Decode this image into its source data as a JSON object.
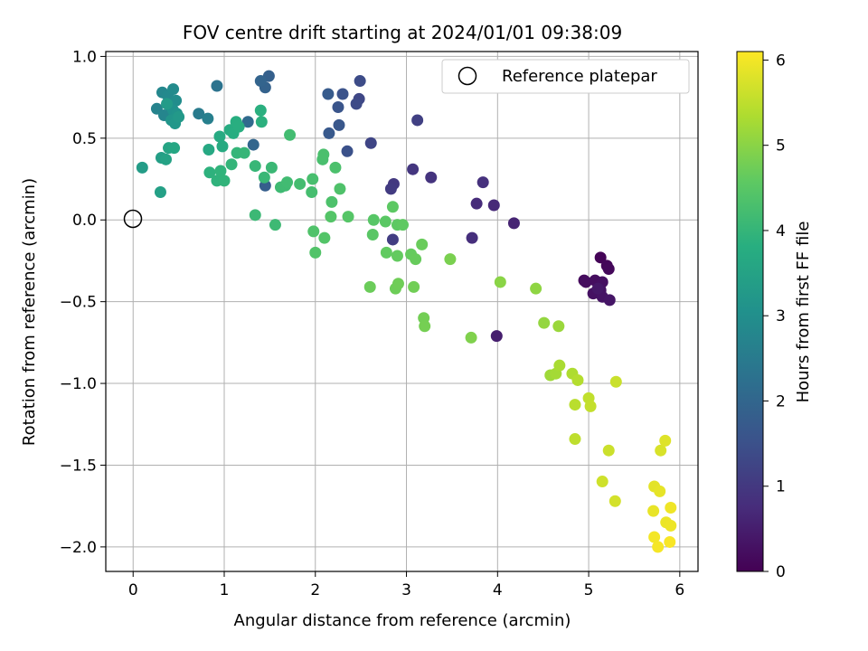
{
  "chart_data": {
    "type": "scatter",
    "title": "FOV centre drift starting at 2024/01/01 09:38:09",
    "xlabel": "Angular distance from reference (arcmin)",
    "ylabel": "Rotation from reference (arcmin)",
    "xlim": [
      -0.3,
      6.2
    ],
    "ylim": [
      -2.15,
      1.03
    ],
    "x_ticks": [
      0,
      1,
      2,
      3,
      4,
      5,
      6
    ],
    "y_ticks": [
      -2.0,
      -1.5,
      -1.0,
      -0.5,
      0.0,
      0.5,
      1.0
    ],
    "x_tick_labels": [
      "0",
      "1",
      "2",
      "3",
      "4",
      "5",
      "6"
    ],
    "y_tick_labels": [
      "−2.0",
      "−1.5",
      "−1.0",
      "−0.5",
      "0.0",
      "0.5",
      "1.0"
    ],
    "grid": true,
    "colormap": "viridis",
    "colorbar": {
      "label": "Hours from first FF file",
      "range": [
        0,
        6.1
      ],
      "ticks": [
        0,
        1,
        2,
        3,
        4,
        5,
        6
      ],
      "tick_labels": [
        "0",
        "1",
        "2",
        "3",
        "4",
        "5",
        "6"
      ]
    },
    "legend": {
      "placement": "top-right",
      "entries": [
        "Reference platepar"
      ]
    },
    "reference_point": {
      "x": 0.0,
      "y": 0.0
    },
    "points": [
      {
        "x": 5.13,
        "y": -0.23,
        "c": 0.05
      },
      {
        "x": 5.2,
        "y": -0.28,
        "c": 0.1
      },
      {
        "x": 5.22,
        "y": -0.3,
        "c": 0.12
      },
      {
        "x": 4.95,
        "y": -0.37,
        "c": 0.15
      },
      {
        "x": 4.97,
        "y": -0.38,
        "c": 0.2
      },
      {
        "x": 5.07,
        "y": -0.37,
        "c": 0.22
      },
      {
        "x": 5.15,
        "y": -0.38,
        "c": 0.25
      },
      {
        "x": 5.05,
        "y": -0.45,
        "c": 0.28
      },
      {
        "x": 5.13,
        "y": -0.43,
        "c": 0.3
      },
      {
        "x": 5.15,
        "y": -0.47,
        "c": 0.32
      },
      {
        "x": 5.23,
        "y": -0.49,
        "c": 0.35
      },
      {
        "x": 5.1,
        "y": -0.42,
        "c": 0.38
      },
      {
        "x": 3.99,
        "y": -0.71,
        "c": 0.5
      },
      {
        "x": 4.18,
        "y": -0.02,
        "c": 0.6
      },
      {
        "x": 3.96,
        "y": 0.09,
        "c": 0.7
      },
      {
        "x": 3.77,
        "y": 0.1,
        "c": 0.75
      },
      {
        "x": 3.72,
        "y": -0.11,
        "c": 0.8
      },
      {
        "x": 3.84,
        "y": 0.23,
        "c": 0.85
      },
      {
        "x": 3.27,
        "y": 0.26,
        "c": 0.9
      },
      {
        "x": 3.07,
        "y": 0.31,
        "c": 0.95
      },
      {
        "x": 2.86,
        "y": 0.22,
        "c": 1.0
      },
      {
        "x": 2.83,
        "y": 0.19,
        "c": 1.05
      },
      {
        "x": 2.85,
        "y": -0.12,
        "c": 1.1
      },
      {
        "x": 3.12,
        "y": 0.61,
        "c": 1.15
      },
      {
        "x": 2.61,
        "y": 0.47,
        "c": 1.25
      },
      {
        "x": 2.48,
        "y": 0.74,
        "c": 1.3
      },
      {
        "x": 2.45,
        "y": 0.71,
        "c": 1.35
      },
      {
        "x": 2.49,
        "y": 0.85,
        "c": 1.4
      },
      {
        "x": 2.35,
        "y": 0.42,
        "c": 1.5
      },
      {
        "x": 2.3,
        "y": 0.77,
        "c": 1.55
      },
      {
        "x": 2.25,
        "y": 0.69,
        "c": 1.6
      },
      {
        "x": 2.26,
        "y": 0.58,
        "c": 1.65
      },
      {
        "x": 2.15,
        "y": 0.53,
        "c": 1.7
      },
      {
        "x": 2.14,
        "y": 0.77,
        "c": 1.75
      },
      {
        "x": 1.45,
        "y": 0.21,
        "c": 1.8
      },
      {
        "x": 1.49,
        "y": 0.88,
        "c": 1.85
      },
      {
        "x": 1.45,
        "y": 0.81,
        "c": 1.9
      },
      {
        "x": 1.4,
        "y": 0.85,
        "c": 1.95
      },
      {
        "x": 1.32,
        "y": 0.46,
        "c": 2.0
      },
      {
        "x": 1.26,
        "y": 0.6,
        "c": 2.1
      },
      {
        "x": 0.92,
        "y": 0.82,
        "c": 2.3
      },
      {
        "x": 0.72,
        "y": 0.65,
        "c": 2.5
      },
      {
        "x": 0.82,
        "y": 0.62,
        "c": 2.6
      },
      {
        "x": 0.26,
        "y": 0.68,
        "c": 2.7
      },
      {
        "x": 0.34,
        "y": 0.64,
        "c": 2.75
      },
      {
        "x": 0.32,
        "y": 0.78,
        "c": 2.8
      },
      {
        "x": 0.38,
        "y": 0.76,
        "c": 2.85
      },
      {
        "x": 0.44,
        "y": 0.8,
        "c": 2.9
      },
      {
        "x": 0.47,
        "y": 0.73,
        "c": 2.95
      },
      {
        "x": 0.4,
        "y": 0.7,
        "c": 3.0
      },
      {
        "x": 0.44,
        "y": 0.67,
        "c": 3.05
      },
      {
        "x": 0.48,
        "y": 0.65,
        "c": 3.1
      },
      {
        "x": 0.42,
        "y": 0.61,
        "c": 3.15
      },
      {
        "x": 0.46,
        "y": 0.59,
        "c": 3.2
      },
      {
        "x": 0.5,
        "y": 0.63,
        "c": 3.25
      },
      {
        "x": 0.37,
        "y": 0.71,
        "c": 3.3
      },
      {
        "x": 0.1,
        "y": 0.32,
        "c": 3.35
      },
      {
        "x": 0.31,
        "y": 0.38,
        "c": 3.4
      },
      {
        "x": 0.3,
        "y": 0.17,
        "c": 3.45
      },
      {
        "x": 0.36,
        "y": 0.37,
        "c": 3.5
      },
      {
        "x": 0.39,
        "y": 0.44,
        "c": 3.55
      },
      {
        "x": 0.45,
        "y": 0.44,
        "c": 3.6
      },
      {
        "x": 0.83,
        "y": 0.43,
        "c": 3.65
      },
      {
        "x": 0.95,
        "y": 0.51,
        "c": 3.7
      },
      {
        "x": 0.98,
        "y": 0.45,
        "c": 3.72
      },
      {
        "x": 1.06,
        "y": 0.55,
        "c": 3.75
      },
      {
        "x": 1.1,
        "y": 0.53,
        "c": 3.78
      },
      {
        "x": 1.13,
        "y": 0.6,
        "c": 3.8
      },
      {
        "x": 1.16,
        "y": 0.57,
        "c": 3.82
      },
      {
        "x": 1.4,
        "y": 0.67,
        "c": 3.85
      },
      {
        "x": 1.41,
        "y": 0.6,
        "c": 3.87
      },
      {
        "x": 0.84,
        "y": 0.29,
        "c": 3.9
      },
      {
        "x": 0.92,
        "y": 0.24,
        "c": 3.92
      },
      {
        "x": 0.96,
        "y": 0.3,
        "c": 3.94
      },
      {
        "x": 1.0,
        "y": 0.24,
        "c": 3.96
      },
      {
        "x": 1.08,
        "y": 0.34,
        "c": 3.98
      },
      {
        "x": 1.14,
        "y": 0.41,
        "c": 4.0
      },
      {
        "x": 1.22,
        "y": 0.41,
        "c": 4.02
      },
      {
        "x": 1.34,
        "y": 0.33,
        "c": 4.04
      },
      {
        "x": 1.44,
        "y": 0.26,
        "c": 4.06
      },
      {
        "x": 1.52,
        "y": 0.32,
        "c": 4.08
      },
      {
        "x": 1.34,
        "y": 0.03,
        "c": 4.1
      },
      {
        "x": 1.56,
        "y": -0.03,
        "c": 4.12
      },
      {
        "x": 1.62,
        "y": 0.2,
        "c": 4.14
      },
      {
        "x": 1.67,
        "y": 0.21,
        "c": 4.16
      },
      {
        "x": 1.69,
        "y": 0.23,
        "c": 4.18
      },
      {
        "x": 1.72,
        "y": 0.52,
        "c": 4.2
      },
      {
        "x": 1.83,
        "y": 0.22,
        "c": 4.22
      },
      {
        "x": 1.96,
        "y": 0.17,
        "c": 4.24
      },
      {
        "x": 1.97,
        "y": 0.25,
        "c": 4.26
      },
      {
        "x": 2.08,
        "y": 0.37,
        "c": 4.28
      },
      {
        "x": 2.09,
        "y": 0.4,
        "c": 4.3
      },
      {
        "x": 2.22,
        "y": 0.32,
        "c": 4.32
      },
      {
        "x": 2.18,
        "y": 0.11,
        "c": 4.34
      },
      {
        "x": 2.27,
        "y": 0.19,
        "c": 4.36
      },
      {
        "x": 1.98,
        "y": -0.07,
        "c": 4.38
      },
      {
        "x": 2.0,
        "y": -0.2,
        "c": 4.4
      },
      {
        "x": 2.1,
        "y": -0.11,
        "c": 4.42
      },
      {
        "x": 2.17,
        "y": 0.02,
        "c": 4.44
      },
      {
        "x": 2.36,
        "y": 0.02,
        "c": 4.46
      },
      {
        "x": 2.64,
        "y": 0.0,
        "c": 4.48
      },
      {
        "x": 2.63,
        "y": -0.09,
        "c": 4.5
      },
      {
        "x": 2.77,
        "y": -0.01,
        "c": 4.52
      },
      {
        "x": 2.85,
        "y": 0.08,
        "c": 4.54
      },
      {
        "x": 2.9,
        "y": -0.03,
        "c": 4.56
      },
      {
        "x": 2.96,
        "y": -0.03,
        "c": 4.58
      },
      {
        "x": 2.78,
        "y": -0.2,
        "c": 4.6
      },
      {
        "x": 2.9,
        "y": -0.22,
        "c": 4.62
      },
      {
        "x": 3.05,
        "y": -0.21,
        "c": 4.64
      },
      {
        "x": 3.1,
        "y": -0.24,
        "c": 4.66
      },
      {
        "x": 3.17,
        "y": -0.15,
        "c": 4.68
      },
      {
        "x": 2.6,
        "y": -0.41,
        "c": 4.7
      },
      {
        "x": 2.88,
        "y": -0.42,
        "c": 4.72
      },
      {
        "x": 2.91,
        "y": -0.39,
        "c": 4.74
      },
      {
        "x": 3.08,
        "y": -0.41,
        "c": 4.76
      },
      {
        "x": 3.19,
        "y": -0.6,
        "c": 4.78
      },
      {
        "x": 3.2,
        "y": -0.65,
        "c": 4.8
      },
      {
        "x": 3.48,
        "y": -0.24,
        "c": 4.85
      },
      {
        "x": 3.71,
        "y": -0.72,
        "c": 4.9
      },
      {
        "x": 4.03,
        "y": -0.38,
        "c": 5.0
      },
      {
        "x": 4.42,
        "y": -0.42,
        "c": 5.05
      },
      {
        "x": 4.51,
        "y": -0.63,
        "c": 5.1
      },
      {
        "x": 4.67,
        "y": -0.65,
        "c": 5.15
      },
      {
        "x": 4.58,
        "y": -0.95,
        "c": 5.2
      },
      {
        "x": 4.64,
        "y": -0.94,
        "c": 5.25
      },
      {
        "x": 4.68,
        "y": -0.89,
        "c": 5.3
      },
      {
        "x": 4.82,
        "y": -0.94,
        "c": 5.35
      },
      {
        "x": 4.88,
        "y": -0.98,
        "c": 5.4
      },
      {
        "x": 4.85,
        "y": -1.13,
        "c": 5.45
      },
      {
        "x": 4.85,
        "y": -1.34,
        "c": 5.5
      },
      {
        "x": 5.0,
        "y": -1.09,
        "c": 5.52
      },
      {
        "x": 5.02,
        "y": -1.14,
        "c": 5.55
      },
      {
        "x": 5.3,
        "y": -0.99,
        "c": 5.6
      },
      {
        "x": 5.22,
        "y": -1.41,
        "c": 5.62
      },
      {
        "x": 5.15,
        "y": -1.6,
        "c": 5.65
      },
      {
        "x": 5.29,
        "y": -1.72,
        "c": 5.7
      },
      {
        "x": 5.79,
        "y": -1.41,
        "c": 5.75
      },
      {
        "x": 5.84,
        "y": -1.35,
        "c": 5.8
      },
      {
        "x": 5.72,
        "y": -1.63,
        "c": 5.85
      },
      {
        "x": 5.78,
        "y": -1.66,
        "c": 5.88
      },
      {
        "x": 5.71,
        "y": -1.78,
        "c": 5.9
      },
      {
        "x": 5.85,
        "y": -1.85,
        "c": 5.93
      },
      {
        "x": 5.9,
        "y": -1.87,
        "c": 5.95
      },
      {
        "x": 5.9,
        "y": -1.76,
        "c": 5.97
      },
      {
        "x": 5.72,
        "y": -1.94,
        "c": 6.0
      },
      {
        "x": 5.76,
        "y": -2.0,
        "c": 6.02
      },
      {
        "x": 5.89,
        "y": -1.97,
        "c": 6.05
      }
    ]
  }
}
